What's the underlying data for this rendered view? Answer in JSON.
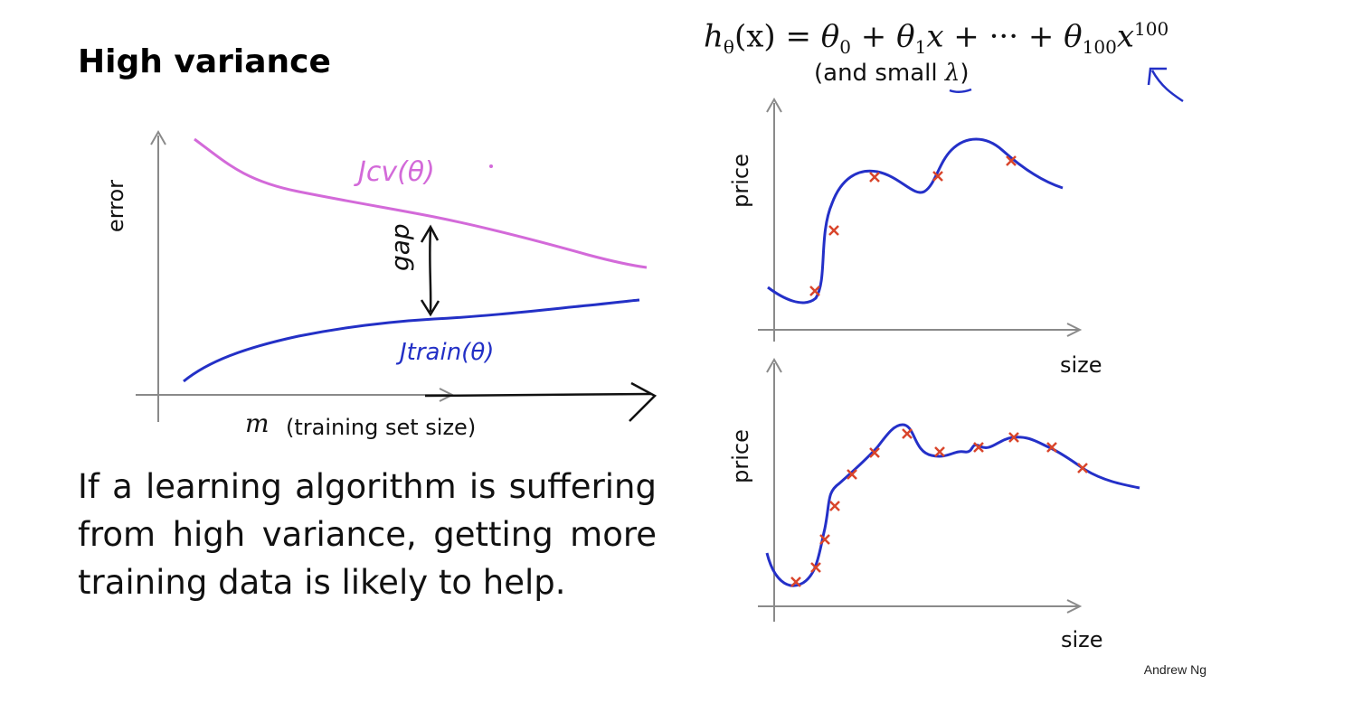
{
  "slide": {
    "title": "High variance",
    "formula": {
      "lhs": "h",
      "lhs_sub": "θ",
      "lhs_arg": "(x) = ",
      "t0": "θ",
      "t0_sub": "0",
      "plus1": " + ",
      "t1": "θ",
      "t1_sub": "1",
      "t1_var": "x",
      "plus2": " + ··· + ",
      "t100": "θ",
      "t100_sub": "100",
      "t100_var": "x",
      "t100_exp": "100",
      "note_prefix": "(and small ",
      "note_lambda": "λ",
      "note_suffix": ")"
    },
    "body": "If a learning algorithm is suffering from high variance, getting more training data is likely to help.",
    "credit": "Andrew Ng"
  },
  "learning_curve": {
    "ylabel": "error",
    "xlabel_symbol": "m",
    "xlabel": "(training set size)",
    "cv_label": "Jcv(θ)",
    "train_label": "Jtrain(θ)",
    "gap_label": "gap",
    "colors": {
      "cv": "#d36ad9",
      "train": "#2330c6",
      "axis": "#888888"
    }
  },
  "fit_plot_top": {
    "xlabel": "size",
    "ylabel": "price",
    "marker_color": "#d9452b",
    "curve_color": "#2430c8"
  },
  "fit_plot_bottom": {
    "xlabel": "size",
    "ylabel": "price",
    "marker_color": "#d9452b",
    "curve_color": "#2430c8"
  }
}
